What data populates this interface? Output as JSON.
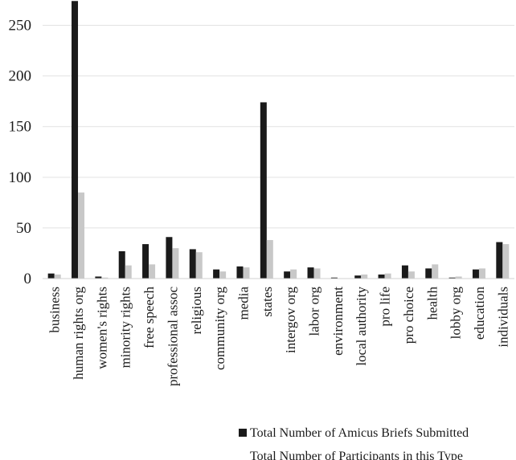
{
  "chart_data": {
    "type": "bar",
    "categories": [
      "business",
      "human rights org",
      "women's rights",
      "minority rights",
      "free speech",
      "professional assoc",
      "religious",
      "community org",
      "media",
      "states",
      "intergov org",
      "labor org",
      "environment",
      "local authority",
      "pro life",
      "pro choice",
      "health",
      "lobby org",
      "education",
      "individuals"
    ],
    "series": [
      {
        "name": "Total Number of Amicus Briefs Submitted",
        "color": "#1a1a1a",
        "values": [
          5,
          274,
          2,
          27,
          34,
          41,
          29,
          9,
          12,
          174,
          7,
          11,
          1,
          3,
          4,
          13,
          10,
          1,
          9,
          36
        ]
      },
      {
        "name": "Total Number of Participants in this Type",
        "color": "#c8c8c8",
        "values": [
          4,
          85,
          1,
          13,
          14,
          30,
          26,
          7,
          11,
          38,
          9,
          10,
          0,
          4,
          5,
          7,
          14,
          2,
          10,
          34
        ]
      }
    ],
    "y_ticks": [
      0,
      50,
      100,
      150,
      200,
      250
    ],
    "ylim": [
      0,
      275
    ],
    "grid": true,
    "legend_position": "bottom-right"
  }
}
